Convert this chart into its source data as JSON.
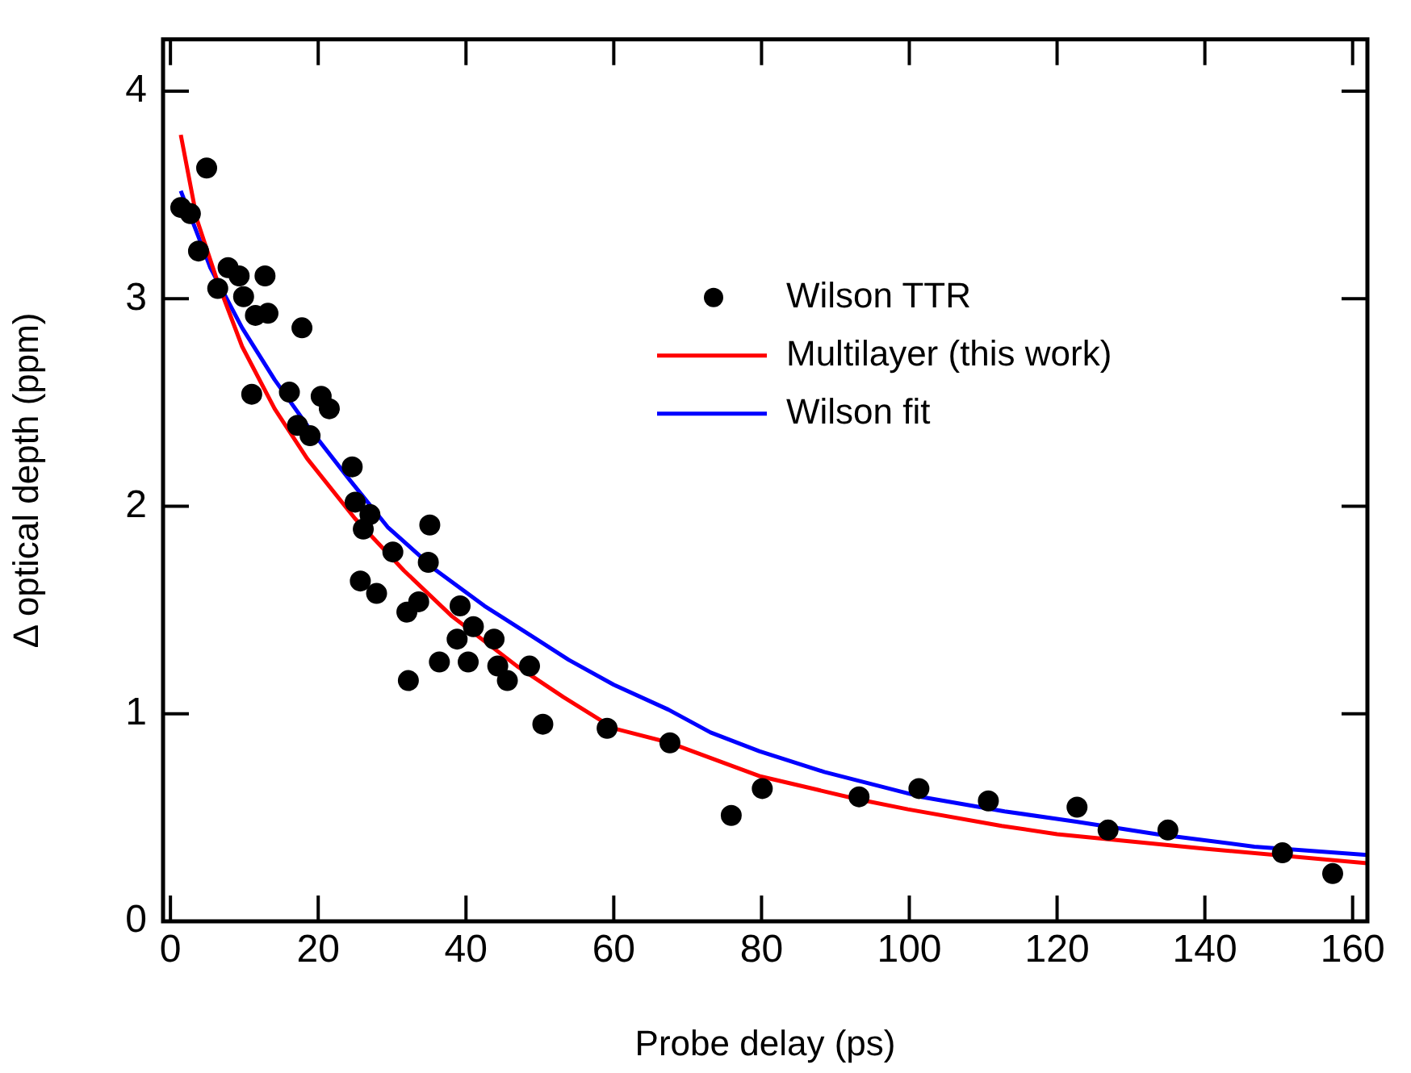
{
  "chart_data": {
    "type": "scatter",
    "xlabel": "Probe delay (ps)",
    "ylabel": "Δ optical depth (ppm)",
    "xlim": [
      -1,
      162
    ],
    "xticks": [
      0,
      20,
      40,
      60,
      80,
      100,
      120,
      140,
      160
    ],
    "ylim": [
      0,
      4.25
    ],
    "yticks": [
      0,
      1,
      2,
      3,
      4
    ],
    "grid": false,
    "legend": "top right",
    "series": [
      {
        "name": "Wilson TTR",
        "marker": "circle",
        "color": "#000000",
        "x": [
          1.4,
          2.7,
          3.8,
          4.9,
          6.4,
          7.8,
          9.3,
          9.9,
          11.0,
          11.5,
          12.8,
          13.2,
          16.1,
          17.2,
          17.8,
          18.9,
          20.4,
          21.5,
          24.6,
          25.0,
          25.7,
          26.1,
          27.0,
          27.9,
          30.1,
          32.0,
          32.2,
          33.6,
          34.9,
          35.1,
          36.4,
          38.8,
          39.2,
          40.3,
          41.0,
          43.8,
          44.3,
          45.6,
          48.6,
          50.4,
          59.1,
          67.6,
          75.9,
          80.1,
          93.2,
          101.3,
          110.7,
          122.7,
          126.9,
          135.0,
          150.5,
          157.3
        ],
        "values": [
          3.44,
          3.41,
          3.23,
          3.63,
          3.05,
          3.15,
          3.11,
          3.01,
          2.54,
          2.92,
          3.11,
          2.93,
          2.55,
          2.39,
          2.86,
          2.34,
          2.53,
          2.47,
          2.19,
          2.02,
          1.64,
          1.89,
          1.96,
          1.58,
          1.78,
          1.49,
          1.16,
          1.54,
          1.73,
          1.91,
          1.25,
          1.36,
          1.52,
          1.25,
          1.42,
          1.36,
          1.23,
          1.16,
          1.23,
          0.95,
          0.93,
          0.86,
          0.51,
          0.64,
          0.6,
          0.64,
          0.58,
          0.55,
          0.44,
          0.44,
          0.33,
          0.23
        ]
      },
      {
        "name": "Multilayer (this work)",
        "type": "line",
        "color": "#ff0000",
        "x": [
          1.4,
          3.6,
          6.4,
          9.7,
          14.1,
          18.5,
          25,
          31.6,
          38.1,
          46.9,
          53.2,
          60,
          67.6,
          79.7,
          92.8,
          99.8,
          112.5,
          120,
          140,
          162
        ],
        "values": [
          3.79,
          3.38,
          3.08,
          2.77,
          2.47,
          2.23,
          1.94,
          1.69,
          1.47,
          1.23,
          1.08,
          0.93,
          0.86,
          0.7,
          0.59,
          0.54,
          0.46,
          0.42,
          0.35,
          0.28
        ]
      },
      {
        "name": "Wilson fit",
        "type": "line",
        "color": "#0000ff",
        "x": [
          1.4,
          5.4,
          9.7,
          14.1,
          18.5,
          24.2,
          29.4,
          36,
          42.5,
          49.1,
          53.9,
          60,
          67.4,
          73.1,
          79.7,
          88.5,
          101.6,
          112.9,
          122.6,
          133.5,
          146.7,
          162
        ],
        "values": [
          3.52,
          3.15,
          2.86,
          2.61,
          2.39,
          2.13,
          1.9,
          1.69,
          1.52,
          1.37,
          1.26,
          1.14,
          1.02,
          0.91,
          0.82,
          0.72,
          0.6,
          0.53,
          0.48,
          0.42,
          0.36,
          0.32
        ]
      }
    ]
  }
}
